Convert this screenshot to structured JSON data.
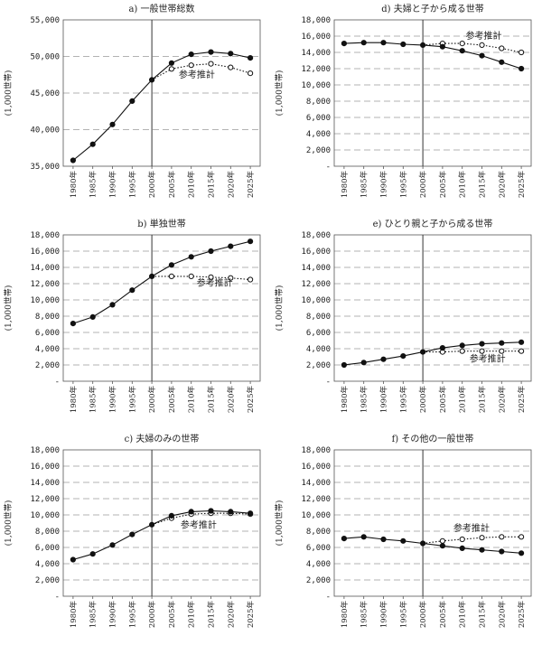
{
  "chart_data": [
    {
      "type": "line",
      "title": "a) 一般世帯総数",
      "ylabel": "(1,000世帯)",
      "ylim": [
        35000,
        55000
      ],
      "yticks": [
        "35,000",
        "40,000",
        "45,000",
        "50,000",
        "55,000"
      ],
      "categories": [
        "1980年",
        "1985年",
        "1990年",
        "1995年",
        "2000年",
        "2005年",
        "2010年",
        "2015年",
        "2020年",
        "2025年"
      ],
      "annotation": "参考推計",
      "series": [
        {
          "values": [
            35800,
            38000,
            40700,
            43900,
            46800,
            49100,
            50300,
            50600,
            50400,
            49800
          ]
        },
        {
          "values": [
            null,
            null,
            null,
            null,
            46800,
            48300,
            48800,
            49000,
            48500,
            47700
          ]
        }
      ]
    },
    {
      "type": "line",
      "title": "d) 夫婦と子から成る世帯",
      "ylabel": "(1,000世帯)",
      "ylim": [
        0,
        18000
      ],
      "yticks": [
        "-",
        "2,000",
        "4,000",
        "6,000",
        "8,000",
        "10,000",
        "12,000",
        "14,000",
        "16,000",
        "18,000"
      ],
      "categories": [
        "1980年",
        "1985年",
        "1990年",
        "1995年",
        "2000年",
        "2005年",
        "2010年",
        "2015年",
        "2020年",
        "2025年"
      ],
      "annotation": "参考推計",
      "series": [
        {
          "values": [
            15100,
            15200,
            15200,
            15000,
            14900,
            14700,
            14200,
            13600,
            12800,
            12000
          ]
        },
        {
          "values": [
            null,
            null,
            null,
            null,
            14900,
            15100,
            15100,
            14900,
            14500,
            14000
          ]
        }
      ]
    },
    {
      "type": "line",
      "title": "b) 単独世帯",
      "ylabel": "(1,000世帯)",
      "ylim": [
        0,
        18000
      ],
      "yticks": [
        "-",
        "2,000",
        "4,000",
        "6,000",
        "8,000",
        "10,000",
        "12,000",
        "14,000",
        "16,000",
        "18,000"
      ],
      "categories": [
        "1980年",
        "1985年",
        "1990年",
        "1995年",
        "2000年",
        "2005年",
        "2010年",
        "2015年",
        "2020年",
        "2025年"
      ],
      "annotation": "参考推計",
      "series": [
        {
          "values": [
            7100,
            7900,
            9400,
            11200,
            12900,
            14300,
            15300,
            16000,
            16600,
            17200
          ]
        },
        {
          "values": [
            null,
            null,
            null,
            null,
            12900,
            12900,
            12900,
            12800,
            12700,
            12500
          ]
        }
      ]
    },
    {
      "type": "line",
      "title": "e) ひとり親と子から成る世帯",
      "ylabel": "(1,000世帯)",
      "ylim": [
        0,
        18000
      ],
      "yticks": [
        "-",
        "2,000",
        "4,000",
        "6,000",
        "8,000",
        "10,000",
        "12,000",
        "14,000",
        "16,000",
        "18,000"
      ],
      "categories": [
        "1980年",
        "1985年",
        "1990年",
        "1995年",
        "2000年",
        "2005年",
        "2010年",
        "2015年",
        "2020年",
        "2025年"
      ],
      "annotation": "参考推計",
      "series": [
        {
          "values": [
            2000,
            2300,
            2700,
            3100,
            3600,
            4100,
            4400,
            4600,
            4700,
            4800
          ]
        },
        {
          "values": [
            null,
            null,
            null,
            null,
            3600,
            3600,
            3700,
            3700,
            3700,
            3700
          ]
        }
      ]
    },
    {
      "type": "line",
      "title": "c) 夫婦のみの世帯",
      "ylabel": "(1,000世帯)",
      "ylim": [
        0,
        18000
      ],
      "yticks": [
        "-",
        "2,000",
        "4,000",
        "6,000",
        "8,000",
        "10,000",
        "12,000",
        "14,000",
        "16,000",
        "18,000"
      ],
      "categories": [
        "1980年",
        "1985年",
        "1990年",
        "1995年",
        "2000年",
        "2005年",
        "2010年",
        "2015年",
        "2020年",
        "2025年"
      ],
      "annotation": "参考推計",
      "series": [
        {
          "values": [
            4500,
            5200,
            6300,
            7600,
            8800,
            9900,
            10400,
            10500,
            10400,
            10200
          ]
        },
        {
          "values": [
            null,
            null,
            null,
            null,
            8800,
            9600,
            10100,
            10200,
            10200,
            10100
          ]
        }
      ]
    },
    {
      "type": "line",
      "title": "f) その他の一般世帯",
      "ylabel": "(1,000世帯)",
      "ylim": [
        0,
        18000
      ],
      "yticks": [
        "-",
        "2,000",
        "4,000",
        "6,000",
        "8,000",
        "10,000",
        "12,000",
        "14,000",
        "16,000",
        "18,000"
      ],
      "categories": [
        "1980年",
        "1985年",
        "1990年",
        "1995年",
        "2000年",
        "2005年",
        "2010年",
        "2015年",
        "2020年",
        "2025年"
      ],
      "annotation": "参考推計",
      "series": [
        {
          "values": [
            7100,
            7300,
            7000,
            6800,
            6500,
            6200,
            5900,
            5700,
            5500,
            5300
          ]
        },
        {
          "values": [
            null,
            null,
            null,
            null,
            6500,
            6800,
            7000,
            7200,
            7300,
            7300
          ]
        }
      ]
    }
  ]
}
